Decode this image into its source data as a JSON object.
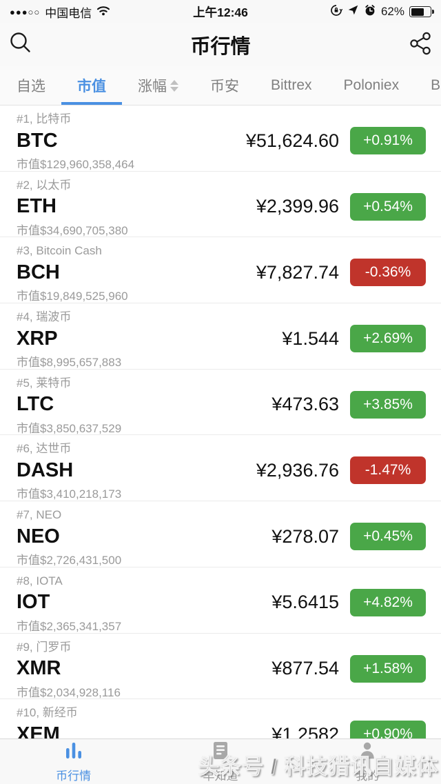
{
  "colors": {
    "accent_blue": "#4a90e2",
    "up_green": "#4aa748",
    "down_red": "#c0342b"
  },
  "status_bar": {
    "signal_dots": "●●●○○",
    "carrier": "中国电信",
    "time": "上午12:46",
    "battery_percent": "62%"
  },
  "header": {
    "title": "币行情"
  },
  "tabs": [
    {
      "key": "watchlist",
      "label": "自选"
    },
    {
      "key": "market-cap",
      "label": "市值",
      "active": true
    },
    {
      "key": "change",
      "label": "涨幅",
      "sortable": true
    },
    {
      "key": "binance",
      "label": "币安"
    },
    {
      "key": "bittrex",
      "label": "Bittrex"
    },
    {
      "key": "poloniex",
      "label": "Poloniex"
    },
    {
      "key": "bi",
      "label": "Bi"
    }
  ],
  "coins": [
    {
      "rank": "#1, 比特币",
      "symbol": "BTC",
      "price": "¥51,624.60",
      "change": "+0.91%",
      "direction": "up",
      "market_cap": "市值$129,960,358,464"
    },
    {
      "rank": "#2, 以太币",
      "symbol": "ETH",
      "price": "¥2,399.96",
      "change": "+0.54%",
      "direction": "up",
      "market_cap": "市值$34,690,705,380"
    },
    {
      "rank": "#3, Bitcoin Cash",
      "symbol": "BCH",
      "price": "¥7,827.74",
      "change": "-0.36%",
      "direction": "down",
      "market_cap": "市值$19,849,525,960"
    },
    {
      "rank": "#4, 瑞波币",
      "symbol": "XRP",
      "price": "¥1.544",
      "change": "+2.69%",
      "direction": "up",
      "market_cap": "市值$8,995,657,883"
    },
    {
      "rank": "#5, 莱特币",
      "symbol": "LTC",
      "price": "¥473.63",
      "change": "+3.85%",
      "direction": "up",
      "market_cap": "市值$3,850,637,529"
    },
    {
      "rank": "#6, 达世币",
      "symbol": "DASH",
      "price": "¥2,936.76",
      "change": "-1.47%",
      "direction": "down",
      "market_cap": "市值$3,410,218,173"
    },
    {
      "rank": "#7, NEO",
      "symbol": "NEO",
      "price": "¥278.07",
      "change": "+0.45%",
      "direction": "up",
      "market_cap": "市值$2,726,431,500"
    },
    {
      "rank": "#8, IOTA",
      "symbol": "IOT",
      "price": "¥5.6415",
      "change": "+4.82%",
      "direction": "up",
      "market_cap": "市值$2,365,341,357"
    },
    {
      "rank": "#9, 门罗币",
      "symbol": "XMR",
      "price": "¥877.54",
      "change": "+1.58%",
      "direction": "up",
      "market_cap": "市值$2,034,928,116"
    },
    {
      "rank": "#10, 新经币",
      "symbol": "XEM",
      "price": "¥1.2582",
      "change": "+0.90%",
      "direction": "up",
      "market_cap": ""
    }
  ],
  "bottom_nav": [
    {
      "key": "market",
      "label": "币行情",
      "icon": "bar-chart-icon",
      "active": true
    },
    {
      "key": "news",
      "label": "早知道",
      "icon": "news-icon"
    },
    {
      "key": "me",
      "label": "我的",
      "icon": "profile-icon"
    }
  ],
  "watermark": "头条号 / 科技猎讯自媒体"
}
